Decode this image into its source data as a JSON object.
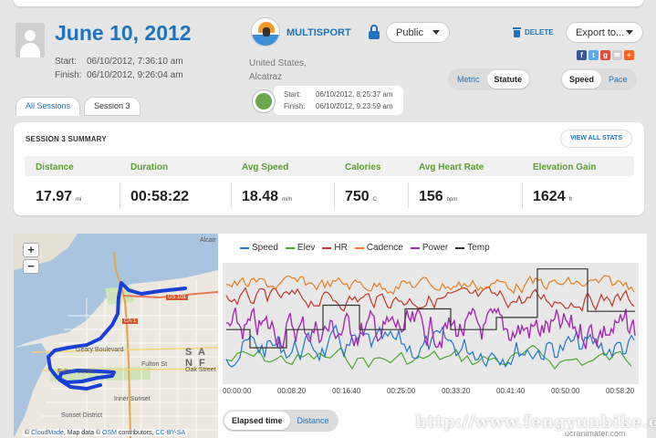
{
  "session": {
    "date": "June 10, 2012",
    "start_label": "Start:",
    "start_value": "06/10/2012, 7:36:10 am",
    "finish_label": "Finish:",
    "finish_value": "06/10/2012, 9:26:04 am"
  },
  "activity": {
    "type_label": "MULTISPORT",
    "privacy_value": "Public",
    "location_line1": "United States,",
    "location_line2": "Alcatraz",
    "sub_start_label": "Start:",
    "sub_start_value": "06/10/2012, 8:25:37 am",
    "sub_finish_label": "Finish:",
    "sub_finish_value": "06/10/2012, 9:23:59 am"
  },
  "actions": {
    "delete_label": "DELETE",
    "export_label": "Export to...",
    "social": [
      {
        "icon": "facebook-icon",
        "glyph": "f",
        "color": "#3b5998"
      },
      {
        "icon": "twitter-icon",
        "glyph": "t",
        "color": "#55acee"
      },
      {
        "icon": "google-plus-icon",
        "glyph": "g",
        "color": "#dd4b39"
      },
      {
        "icon": "email-icon",
        "glyph": "✉",
        "color": "#cccccc"
      },
      {
        "icon": "plus-icon",
        "glyph": "+",
        "color": "#f26522"
      }
    ]
  },
  "units_toggle": {
    "metric": "Metric",
    "statute": "Statute",
    "selected": "Statute"
  },
  "speed_toggle": {
    "speed": "Speed",
    "pace": "Pace",
    "selected": "Speed"
  },
  "tabs": {
    "all_sessions": "All Sessions",
    "session3": "Session 3"
  },
  "summary": {
    "title": "SESSION 3 SUMMARY",
    "view_all": "VIEW ALL STATS",
    "stats": [
      {
        "label": "Distance",
        "value": "17.97",
        "unit": "mi"
      },
      {
        "label": "Duration",
        "value": "00:58:22",
        "unit": ""
      },
      {
        "label": "Avg Speed",
        "value": "18.48",
        "unit": "mi/h"
      },
      {
        "label": "Calories",
        "value": "750",
        "unit": "C"
      },
      {
        "label": "Avg Heart Rate",
        "value": "156",
        "unit": "bpm"
      },
      {
        "label": "Elevation Gain",
        "value": "1624",
        "unit": "ft"
      }
    ]
  },
  "map": {
    "zoom_in": "+",
    "zoom_out": "−",
    "labels": {
      "alcatraz": "Alcatr",
      "geary": "Geary Boulevard",
      "fulton": "Fulton Street",
      "fulton2": "Fulton St",
      "oak": "Oak Street",
      "inner_sunset": "Inner Sunset",
      "sunset_district": "Sunset District",
      "san_f": "S A N  F",
      "us101": "US 101",
      "ca1": "CA 1"
    },
    "attribution_prefix": "© ",
    "attribution_cloudmade": "CloudMade",
    "attribution_mid": ", Map data © ",
    "attribution_osm": "OSM",
    "attribution_contrib": " contributors, ",
    "attribution_license": "CC-BY-SA"
  },
  "chart_data": {
    "type": "line",
    "series": [
      {
        "name": "Speed",
        "color": "#1f77d0"
      },
      {
        "name": "Elev",
        "color": "#4ea72e"
      },
      {
        "name": "HR",
        "color": "#c0392b"
      },
      {
        "name": "Cadence",
        "color": "#e67e22"
      },
      {
        "name": "Power",
        "color": "#a52bb5"
      },
      {
        "name": "Temp",
        "color": "#333333"
      }
    ],
    "x_ticks": [
      "00:00:00",
      "00:08:20",
      "00:16:40",
      "00:25:00",
      "00:33:20",
      "00:41:40",
      "00:50:00",
      "00:58:20"
    ]
  },
  "chart_footer": {
    "elapsed": "Elapsed time",
    "distance": "Distance",
    "selected": "Elapsed time"
  },
  "watermark": {
    "text": "http://www.fengyunbike.com",
    "sub": "ucranimater.com"
  }
}
